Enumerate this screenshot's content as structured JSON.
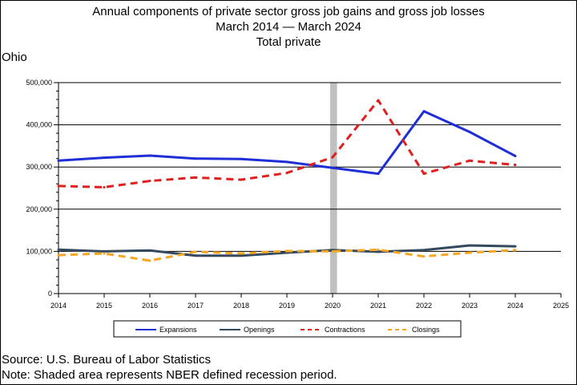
{
  "header": {
    "title_line1": "Annual components of private sector gross job gains and gross job losses",
    "title_line2": "March 2014 — March 2024",
    "title_line3": "Total private",
    "state": "Ohio"
  },
  "footer": {
    "source": "Source: U.S. Bureau of Labor Statistics",
    "note": "Note: Shaded area represents NBER defined recession period."
  },
  "chart_data": {
    "type": "line",
    "title": "Annual components of private sector gross job gains and gross job losses",
    "xlabel": "",
    "ylabel": "",
    "x_ticks": [
      2014,
      2015,
      2016,
      2017,
      2018,
      2019,
      2020,
      2021,
      2022,
      2023,
      2024,
      2025
    ],
    "xlim": [
      2014,
      2025
    ],
    "ylim": [
      0,
      500000
    ],
    "y_ticks": [
      0,
      100000,
      200000,
      300000,
      400000,
      500000
    ],
    "y_tick_labels": [
      "0",
      "100,000",
      "200,000",
      "300,000",
      "400,000",
      "500,000"
    ],
    "gridlines": "horizontal",
    "recession_shading": {
      "start": 2020.0,
      "end": 2020.15,
      "color": "#c0c0c0"
    },
    "series": [
      {
        "name": "Expansions",
        "color": "#1f2fd6",
        "style": "solid",
        "x": [
          2014,
          2015,
          2016,
          2017,
          2018,
          2019,
          2020,
          2021,
          2022,
          2023,
          2024
        ],
        "values": [
          315000,
          322000,
          327000,
          320000,
          319000,
          312000,
          298000,
          284000,
          432000,
          383000,
          326000
        ]
      },
      {
        "name": "Openings",
        "color": "#34495e",
        "style": "solid",
        "x": [
          2014,
          2015,
          2016,
          2017,
          2018,
          2019,
          2020,
          2021,
          2022,
          2023,
          2024
        ],
        "values": [
          104000,
          100000,
          102000,
          90000,
          90000,
          97000,
          103000,
          99000,
          103000,
          114000,
          112000
        ]
      },
      {
        "name": "Contractions",
        "color": "#e01f1f",
        "style": "dashed",
        "x": [
          2014,
          2015,
          2016,
          2017,
          2018,
          2019,
          2020,
          2021,
          2022,
          2023,
          2024
        ],
        "values": [
          255000,
          252000,
          267000,
          275000,
          270000,
          286000,
          323000,
          458000,
          284000,
          315000,
          305000
        ]
      },
      {
        "name": "Closings",
        "color": "#f5a623",
        "style": "dashed",
        "x": [
          2014,
          2015,
          2016,
          2017,
          2018,
          2019,
          2020,
          2021,
          2022,
          2023,
          2024
        ],
        "values": [
          91000,
          95000,
          78000,
          99000,
          95000,
          101000,
          100000,
          104000,
          88000,
          97000,
          103000
        ]
      }
    ]
  }
}
